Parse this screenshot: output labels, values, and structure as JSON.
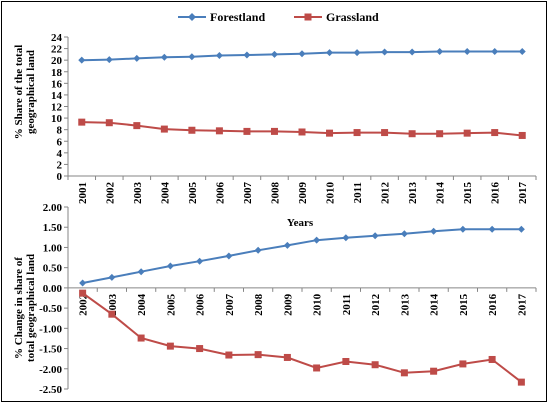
{
  "colors": {
    "forestland": "#4a7ebb",
    "grassland": "#be4b48"
  },
  "chart_data": [
    {
      "type": "line",
      "title": "",
      "xlabel": "Years",
      "ylabel": "% Share of the total geographical land",
      "ylim": [
        0,
        24
      ],
      "ytick_step": 2,
      "grid": false,
      "legend": "top-center",
      "categories": [
        "2001",
        "2002",
        "2003",
        "2004",
        "2005",
        "2006",
        "2007",
        "2008",
        "2009",
        "2010",
        "2011",
        "2012",
        "2013",
        "2014",
        "2015",
        "2016",
        "2017"
      ],
      "series": [
        {
          "name": "Forestland",
          "marker": "diamond",
          "values": [
            20.0,
            20.1,
            20.3,
            20.5,
            20.6,
            20.8,
            20.9,
            21.0,
            21.1,
            21.3,
            21.3,
            21.4,
            21.4,
            21.5,
            21.5,
            21.5,
            21.5
          ]
        },
        {
          "name": "Grassland",
          "marker": "square",
          "values": [
            9.3,
            9.2,
            8.7,
            8.1,
            7.9,
            7.8,
            7.7,
            7.7,
            7.6,
            7.4,
            7.5,
            7.5,
            7.3,
            7.3,
            7.4,
            7.5,
            7.0
          ]
        }
      ]
    },
    {
      "type": "line",
      "title": "",
      "xlabel": "",
      "ylabel": "% Change in share of total geographical land",
      "ylim": [
        -2.5,
        2.0
      ],
      "ytick_step": 0.5,
      "ytick_decimals": 2,
      "grid": false,
      "categories": [
        "2002",
        "2003",
        "2004",
        "2005",
        "2006",
        "2007",
        "2008",
        "2009",
        "2010",
        "2011",
        "2012",
        "2013",
        "2014",
        "2015",
        "2016",
        "2017"
      ],
      "series": [
        {
          "name": "Forestland",
          "marker": "diamond",
          "values": [
            0.12,
            0.26,
            0.4,
            0.54,
            0.66,
            0.79,
            0.93,
            1.05,
            1.18,
            1.24,
            1.29,
            1.34,
            1.4,
            1.45,
            1.45,
            1.45
          ]
        },
        {
          "name": "Grassland",
          "marker": "square",
          "values": [
            -0.13,
            -0.65,
            -1.24,
            -1.44,
            -1.5,
            -1.66,
            -1.65,
            -1.72,
            -1.98,
            -1.82,
            -1.9,
            -2.1,
            -2.06,
            -1.88,
            -1.77,
            -2.33
          ]
        }
      ]
    }
  ]
}
